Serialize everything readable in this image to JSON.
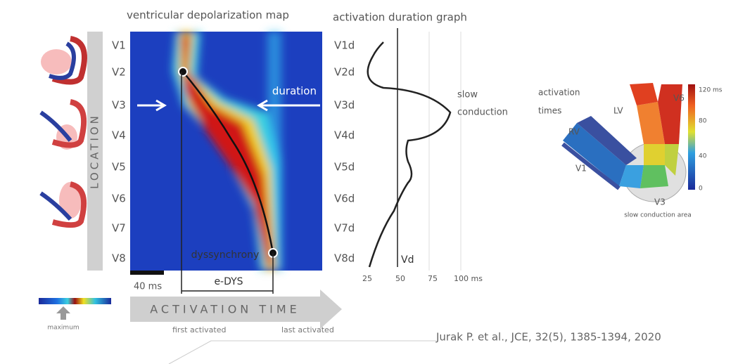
{
  "heatmap": {
    "title": "ventricular depolarization map",
    "axis_label": "LOCATION",
    "rows": [
      "V1",
      "V2",
      "V3",
      "V4",
      "V5",
      "V6",
      "V7",
      "V8"
    ],
    "duration": "duration",
    "dyssynchrony": "dyssynchrony",
    "scale_bar": "40 ms",
    "edys": "e-DYS",
    "x_axis": "ACTIVATION TIME",
    "first": "first activated",
    "last": "last activated"
  },
  "legend": {
    "label": "maximum"
  },
  "graph": {
    "title": "activation duration graph",
    "rows": [
      "V1d",
      "V2d",
      "V3d",
      "V4d",
      "V5d",
      "V6d",
      "V7d",
      "V8d"
    ],
    "ticks": [
      "25",
      "50",
      "75",
      "100 ms"
    ],
    "vd": "Vd",
    "annotation": [
      "slow",
      "conduction"
    ]
  },
  "heart": {
    "title": [
      "activation",
      "times"
    ],
    "labels": [
      "LV",
      "V6",
      "RV",
      "V1",
      "V3"
    ],
    "caption": "slow conduction area",
    "colorbar_ticks": [
      "120 ms",
      "80",
      "40",
      "0"
    ]
  },
  "citation": "Jurak P. et al., JCE, 32(5), 1385-1394, 2020"
}
